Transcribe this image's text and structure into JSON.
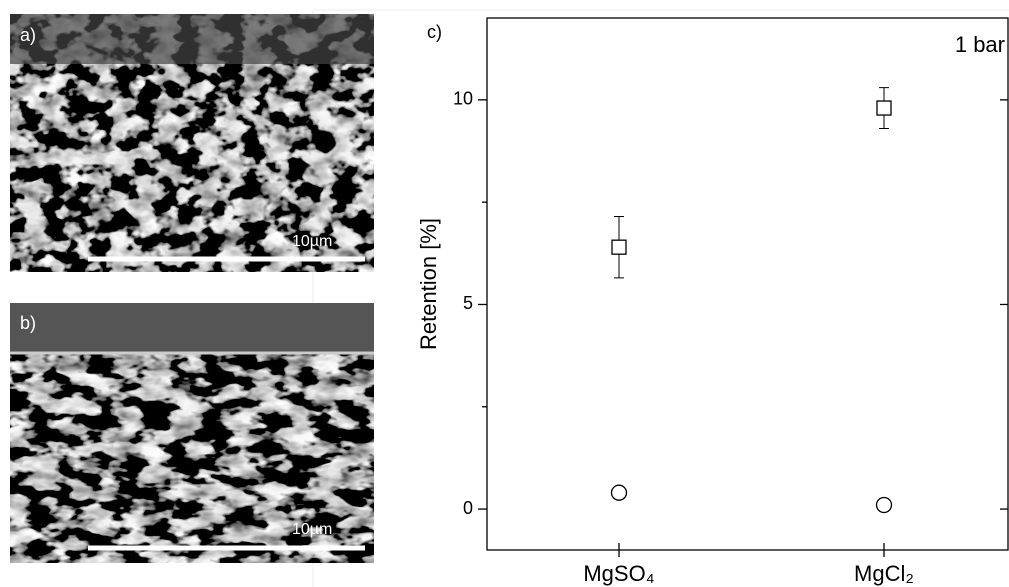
{
  "panels": [
    {
      "label": "a)",
      "scale": "10µm"
    },
    {
      "label": "b)",
      "scale": "10µm"
    }
  ],
  "chart_data": {
    "type": "scatter",
    "panel_label": "c)",
    "annotation": "1 bar",
    "y_label": "Retention [%]",
    "categories": [
      "MgSO₄",
      "MgCl₂"
    ],
    "series": [
      {
        "marker": "square",
        "color": "#000000",
        "values": [
          6.4,
          9.8
        ],
        "errors": [
          0.75,
          0.5
        ]
      },
      {
        "marker": "circle",
        "color": "#000000",
        "values": [
          0.4,
          0.1
        ],
        "errors": [
          0.1,
          0.15
        ]
      }
    ],
    "ylim": [
      -1,
      12
    ],
    "yticks": [
      0,
      5,
      10
    ],
    "yminor_ticks": [
      2.5,
      7.5
    ]
  }
}
